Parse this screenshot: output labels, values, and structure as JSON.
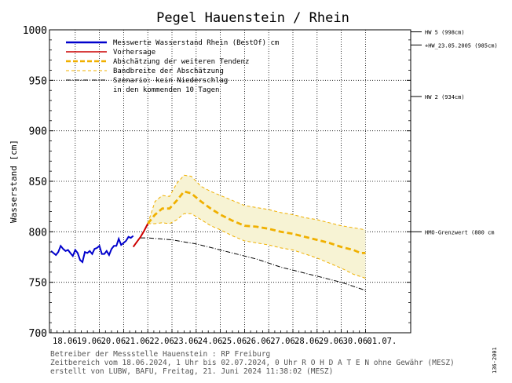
{
  "chart_data": {
    "type": "line",
    "title": "Pegel Hauenstein / Rhein",
    "ylabel": "Wasserstand [cm]",
    "ylim": [
      700,
      1000
    ],
    "yticks": [
      700,
      750,
      800,
      850,
      900,
      950,
      1000
    ],
    "xlim_days": [
      "18.06.",
      "01.07."
    ],
    "day_labels": [
      "18.06.",
      "19.06.",
      "20.06.",
      "21.06.",
      "22.06.",
      "23.06.",
      "24.06.",
      "25.06.",
      "26.06.",
      "27.06.",
      "28.06.",
      "29.06.",
      "30.06.",
      "01.07."
    ],
    "grid": true,
    "legend_position": "top-left",
    "legend": [
      {
        "label": "Messwerte Wasserstand Rhein   (BestOf)   cm",
        "color": "#0000cc",
        "style": "solid-thick"
      },
      {
        "label": "Vorhersage",
        "color": "#cc0000",
        "style": "solid"
      },
      {
        "label": "Abschätzung der weiteren Tendenz",
        "color": "#f0b000",
        "style": "dashed-thick"
      },
      {
        "label": "Bandbreite der Abschätzung",
        "color": "#f0b000",
        "style": "dashed-thin"
      },
      {
        "label": "Szenario: kein Niederschlag",
        "color": "#000000",
        "style": "dashdot"
      },
      {
        "label": "in den kommenden 10 Tagen",
        "color": null,
        "style": "none"
      }
    ],
    "thresholds": [
      {
        "label": "HW 5 (998cm)",
        "value": 998
      },
      {
        "label": "+HW_23.05.2005 (985cm)",
        "value": 985
      },
      {
        "label": "HW 2 (934cm)",
        "value": 934
      },
      {
        "label": "HMO-Grenzwert (800 cm",
        "value": 800
      }
    ],
    "series": [
      {
        "name": "Messwerte Wasserstand Rhein",
        "x": [
          0,
          0.1,
          0.2,
          0.3,
          0.4,
          0.5,
          0.6,
          0.7,
          0.8,
          0.9,
          1.0,
          1.1,
          1.2,
          1.3,
          1.4,
          1.5,
          1.6,
          1.7,
          1.8,
          1.9,
          2.0,
          2.1,
          2.2,
          2.3,
          2.4,
          2.5,
          2.6,
          2.7,
          2.8,
          2.9,
          3.0,
          3.1,
          3.2,
          3.3,
          3.4
        ],
        "y": [
          781,
          779,
          777,
          780,
          786,
          783,
          781,
          782,
          779,
          776,
          782,
          779,
          772,
          770,
          780,
          779,
          781,
          778,
          783,
          784,
          786,
          778,
          778,
          781,
          777,
          783,
          786,
          786,
          793,
          787,
          789,
          791,
          795,
          794,
          796
        ]
      },
      {
        "name": "Vorhersage",
        "x": [
          3.4,
          3.55,
          3.7,
          3.85,
          4.0
        ],
        "y": [
          785,
          790,
          795,
          801,
          808
        ]
      },
      {
        "name": "Abschätzung der weiteren Tendenz",
        "x": [
          4.0,
          4.3,
          4.6,
          4.9,
          5.2,
          5.5,
          5.8,
          6.2,
          6.6,
          7.0,
          7.5,
          8.0,
          8.5,
          9.0,
          9.5,
          10.0,
          10.5,
          11.0,
          11.5,
          12.0,
          12.5,
          12.8,
          13.0
        ],
        "y": [
          808,
          817,
          823,
          823,
          831,
          840,
          838,
          830,
          823,
          817,
          811,
          806,
          805,
          803,
          800,
          798,
          795,
          792,
          789,
          785,
          782,
          779,
          779
        ]
      },
      {
        "name": "Bandbreite oben",
        "x": [
          4.0,
          4.3,
          4.6,
          4.9,
          5.2,
          5.5,
          5.8,
          6.2,
          6.6,
          7.0,
          7.5,
          8.0,
          8.5,
          9.0,
          9.5,
          10.0,
          10.5,
          11.0,
          11.5,
          12.0,
          12.5,
          13.0
        ],
        "y": [
          808,
          830,
          836,
          835,
          848,
          856,
          855,
          845,
          840,
          836,
          831,
          826,
          824,
          822,
          819,
          817,
          814,
          812,
          809,
          806,
          804,
          802
        ]
      },
      {
        "name": "Bandbreite unten",
        "x": [
          4.0,
          4.3,
          4.6,
          4.9,
          5.2,
          5.5,
          5.8,
          6.2,
          6.6,
          7.0,
          7.5,
          8.0,
          8.5,
          9.0,
          9.5,
          10.0,
          10.5,
          11.0,
          11.5,
          12.0,
          12.5,
          13.0
        ],
        "y": [
          808,
          808,
          809,
          808,
          812,
          818,
          818,
          812,
          806,
          802,
          796,
          791,
          789,
          787,
          784,
          782,
          778,
          774,
          769,
          764,
          758,
          754
        ]
      },
      {
        "name": "Szenario: kein Niederschlag",
        "x": [
          3.7,
          4.0,
          4.5,
          5.0,
          5.5,
          6.0,
          6.5,
          7.0,
          7.5,
          8.0,
          8.5,
          9.0,
          9.5,
          10.0,
          10.5,
          11.0,
          11.5,
          12.0,
          12.5,
          13.0
        ],
        "y": [
          794,
          794,
          793,
          792,
          790,
          788,
          785,
          782,
          779,
          776,
          773,
          769,
          765,
          762,
          759,
          756,
          753,
          750,
          746,
          742
        ]
      }
    ],
    "footer": [
      "Betreiber der Messstelle Hauenstein : RP Freiburg",
      "Zeitbereich vom 18.06.2024, 1 Uhr bis 02.07.2024, 0 Uhr    R O H D A T E N ohne Gewähr (MESZ)",
      "erstellt von LUBW, BAFU, Freitag, 21. Juni 2024 11:38:02 (MESZ)"
    ],
    "side_code": "136-2001"
  }
}
